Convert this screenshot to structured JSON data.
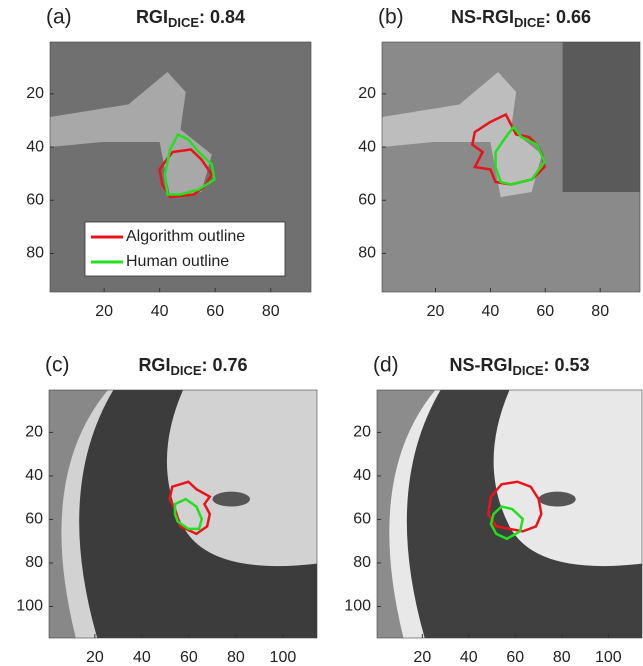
{
  "chart_data": [
    {
      "type": "image",
      "label": "(a)",
      "title": "RGI",
      "title_subscript": "DICE",
      "title_suffix": ": 0.84",
      "xlim": [
        0.5,
        94.5
      ],
      "ylim": [
        0.5,
        94.5
      ],
      "xticks": [
        20,
        40,
        60,
        80
      ],
      "yticks": [
        20,
        40,
        60,
        80
      ],
      "series": [
        {
          "name": "Algorithm outline",
          "color": "#e8141a"
        },
        {
          "name": "Human outline",
          "color": "#22e01e"
        }
      ]
    },
    {
      "type": "image",
      "label": "(b)",
      "title": "NS-RGI",
      "title_subscript": "DICE",
      "title_suffix": ": 0.66",
      "xlim": [
        0.5,
        94.5
      ],
      "ylim": [
        0.5,
        94.5
      ],
      "xticks": [
        20,
        40,
        60,
        80
      ],
      "yticks": [
        20,
        40,
        60,
        80
      ]
    },
    {
      "type": "image",
      "label": "(c)",
      "title": "RGI",
      "title_subscript": "DICE",
      "title_suffix": ": 0.76",
      "xlim": [
        0.5,
        114.5
      ],
      "ylim": [
        0.5,
        114.5
      ],
      "xticks": [
        20,
        40,
        60,
        80,
        100
      ],
      "yticks": [
        20,
        40,
        60,
        80,
        100
      ]
    },
    {
      "type": "image",
      "label": "(d)",
      "title": "NS-RGI",
      "title_subscript": "DICE",
      "title_suffix": ": 0.53",
      "xlim": [
        0.5,
        114.5
      ],
      "ylim": [
        0.5,
        114.5
      ],
      "xticks": [
        20,
        40,
        60,
        80,
        100
      ],
      "yticks": [
        20,
        40,
        60,
        80,
        100
      ]
    }
  ]
}
